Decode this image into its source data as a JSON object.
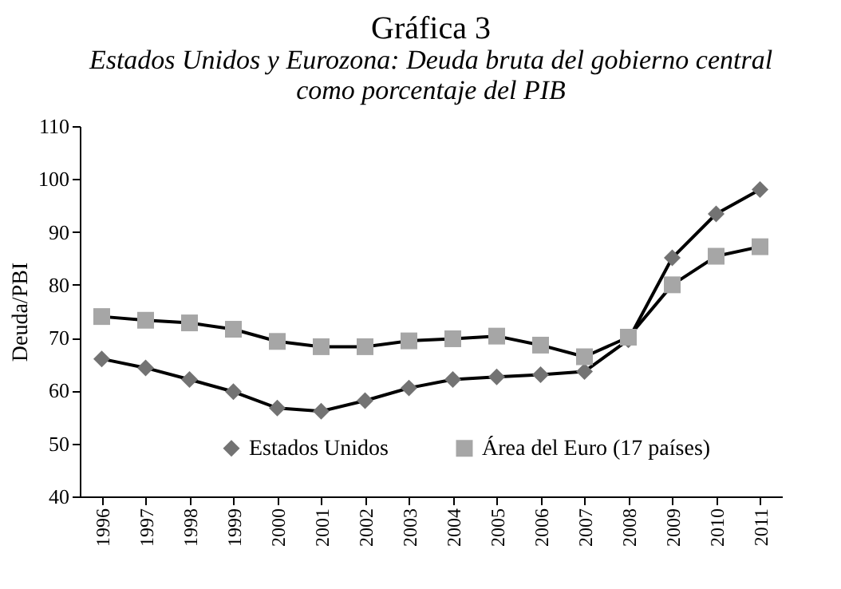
{
  "chart_data": {
    "type": "line",
    "title": "Gráfica 3",
    "subtitle": "Estados Unidos y Eurozona: Deuda bruta del gobierno central\ncomo porcentaje del PIB",
    "ylabel": "Deuda/PBI",
    "categories": [
      "1996",
      "1997",
      "1998",
      "1999",
      "2000",
      "2001",
      "2002",
      "2003",
      "2004",
      "2005",
      "2006",
      "2007",
      "2008",
      "2009",
      "2010",
      "2011"
    ],
    "series": [
      {
        "name": "Estados Unidos",
        "color": "#737373",
        "marker": "diamond",
        "values": [
          66,
          64.3,
          62.1,
          59.8,
          56.7,
          56.1,
          58.1,
          60.5,
          62.1,
          62.6,
          63.0,
          63.6,
          69.6,
          85.1,
          93.4,
          98.0
        ]
      },
      {
        "name": "Área del Euro (17 países)",
        "color": "#a6a6a6",
        "marker": "square",
        "values": [
          74,
          73.3,
          72.8,
          71.6,
          69.3,
          68.3,
          68.3,
          69.4,
          69.8,
          70.3,
          68.6,
          66.4,
          70.1,
          80.0,
          85.4,
          87.2
        ]
      }
    ],
    "ylim": [
      40,
      110
    ],
    "yticks": [
      40,
      50,
      60,
      70,
      80,
      90,
      100,
      110
    ],
    "grid": false,
    "legend": "bottom"
  }
}
